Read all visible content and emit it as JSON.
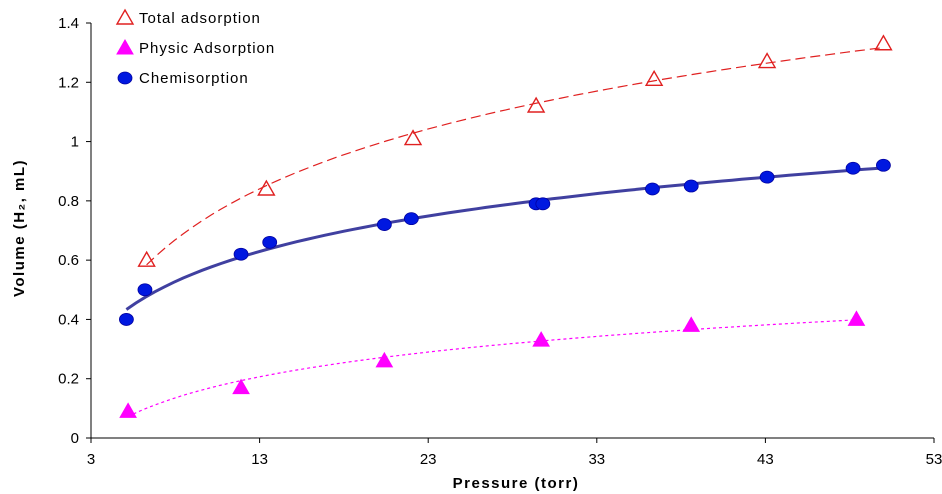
{
  "chart_data": {
    "type": "scatter",
    "xlabel": "Pressure (torr)",
    "ylabel": "Volume (H₂, mL)",
    "xlim": [
      3,
      53
    ],
    "ylim": [
      0,
      1.4
    ],
    "xticks": [
      "3",
      "13",
      "23",
      "33",
      "43",
      "53"
    ],
    "yticks": [
      "0",
      "0.2",
      "0.4",
      "0.6",
      "0.8",
      "1",
      "1.2",
      "1.4"
    ],
    "grid": false,
    "legend_position": "top-left",
    "series": [
      {
        "name": "Total adsorption",
        "marker": "open-triangle",
        "color": "#e02020",
        "trendline": "dashed",
        "x": [
          6.3,
          13.4,
          22.1,
          29.4,
          36.4,
          43.1,
          50.0
        ],
        "y": [
          0.6,
          0.84,
          1.01,
          1.12,
          1.21,
          1.27,
          1.33
        ]
      },
      {
        "name": "Physic Adsorption",
        "marker": "filled-triangle",
        "color": "#ff00ff",
        "trendline": "dotted",
        "x": [
          5.2,
          11.9,
          20.4,
          29.7,
          38.6,
          48.4
        ],
        "y": [
          0.09,
          0.17,
          0.26,
          0.33,
          0.38,
          0.4
        ]
      },
      {
        "name": "Chemisorption",
        "marker": "filled-circle",
        "color": "#0018e0",
        "trendline": "solid",
        "x": [
          5.1,
          6.2,
          11.9,
          13.6,
          20.4,
          22.0,
          29.4,
          29.8,
          36.3,
          38.6,
          43.1,
          48.2,
          50.0
        ],
        "y": [
          0.4,
          0.5,
          0.62,
          0.66,
          0.72,
          0.74,
          0.79,
          0.79,
          0.84,
          0.85,
          0.88,
          0.91,
          0.92
        ]
      }
    ]
  }
}
